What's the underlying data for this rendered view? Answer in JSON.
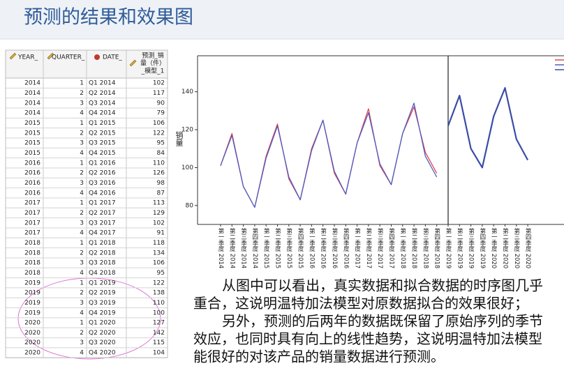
{
  "header": {
    "title": "预测的结果和效果图"
  },
  "table": {
    "columns": [
      "YEAR_",
      "QUARTER_",
      "DATE_",
      [
        "预测_销",
        "量（件）",
        "_模型_1"
      ]
    ],
    "rows": [
      [
        2014,
        1,
        "Q1 2014",
        102
      ],
      [
        2014,
        2,
        "Q2 2014",
        117
      ],
      [
        2014,
        3,
        "Q3 2014",
        90
      ],
      [
        2014,
        4,
        "Q4 2014",
        79
      ],
      [
        2015,
        1,
        "Q1 2015",
        106
      ],
      [
        2015,
        2,
        "Q2 2015",
        122
      ],
      [
        2015,
        3,
        "Q3 2015",
        95
      ],
      [
        2015,
        4,
        "Q4 2015",
        84
      ],
      [
        2016,
        1,
        "Q1 2016",
        110
      ],
      [
        2016,
        2,
        "Q2 2016",
        126
      ],
      [
        2016,
        3,
        "Q3 2016",
        98
      ],
      [
        2016,
        4,
        "Q4 2016",
        87
      ],
      [
        2017,
        1,
        "Q1 2017",
        113
      ],
      [
        2017,
        2,
        "Q2 2017",
        129
      ],
      [
        2017,
        3,
        "Q3 2017",
        102
      ],
      [
        2017,
        4,
        "Q4 2017",
        91
      ],
      [
        2018,
        1,
        "Q1 2018",
        118
      ],
      [
        2018,
        2,
        "Q2 2018",
        134
      ],
      [
        2018,
        3,
        "Q3 2018",
        106
      ],
      [
        2018,
        4,
        "Q4 2018",
        95
      ],
      [
        2019,
        1,
        "Q1 2019",
        122
      ],
      [
        2019,
        2,
        "Q2 2019",
        138
      ],
      [
        2019,
        3,
        "Q3 2019",
        110
      ],
      [
        2019,
        4,
        "Q4 2019",
        100
      ],
      [
        2020,
        1,
        "Q1 2020",
        127
      ],
      [
        2020,
        2,
        "Q2 2020",
        142
      ],
      [
        2020,
        3,
        "Q3 2020",
        115
      ],
      [
        2020,
        4,
        "Q4 2020",
        104
      ]
    ]
  },
  "chart_data": {
    "type": "line",
    "y_label": "销量",
    "categories": [
      "第一季度 2014",
      "第二季度 2014",
      "第三季度 2014",
      "第四季度 2014",
      "第一季度 2015",
      "第二季度 2015",
      "第三季度 2015",
      "第四季度 2015",
      "第一季度 2016",
      "第二季度 2016",
      "第三季度 2016",
      "第四季度 2016",
      "第一季度 2017",
      "第二季度 2017",
      "第三季度 2017",
      "第四季度 2017",
      "第一季度 2018",
      "第二季度 2018",
      "第三季度 2018",
      "第四季度 2018",
      "第一季度 2019",
      "第二季度 2019",
      "第三季度 2019",
      "第四季度 2019",
      "第一季度 2020",
      "第二季度 2020",
      "第三季度 2020",
      "第四季度 2020"
    ],
    "series": [
      {
        "color": "#e5434b",
        "values": [
          101,
          118,
          90,
          79,
          106,
          123,
          94,
          83,
          110,
          125,
          97,
          86,
          113,
          131,
          101,
          91,
          118,
          132,
          108,
          97,
          null,
          null,
          null,
          null,
          null,
          null,
          null,
          null
        ]
      },
      {
        "color": "#4a5cc4",
        "values": [
          101,
          117,
          90,
          79,
          105,
          122,
          95,
          83,
          109,
          125,
          98,
          86,
          113,
          129,
          102,
          91,
          118,
          134,
          106,
          95,
          null,
          null,
          null,
          null,
          null,
          null,
          null,
          null
        ]
      },
      {
        "color": "#3a4ca6",
        "values": [
          null,
          null,
          null,
          null,
          null,
          null,
          null,
          null,
          null,
          null,
          null,
          null,
          null,
          null,
          null,
          null,
          null,
          null,
          null,
          null,
          122,
          138,
          110,
          100,
          127,
          142,
          115,
          104
        ]
      }
    ],
    "ylim": [
      70,
      159
    ],
    "yticks": [
      80,
      100,
      120,
      140
    ]
  },
  "text": {
    "paragraphs": [
      [
        "从图中可以看出，真实数据和拟合数据的时序图几乎",
        "重合，这说明温特加法模型对原数据拟合的效果很好；"
      ],
      [
        "另外，预测的后两年的数据既保留了原始序列的季节",
        "效应，也同时具有向上的线性趋势，这说明温特加法模型",
        "能很好的对该产品的销量数据进行预测。"
      ]
    ]
  }
}
